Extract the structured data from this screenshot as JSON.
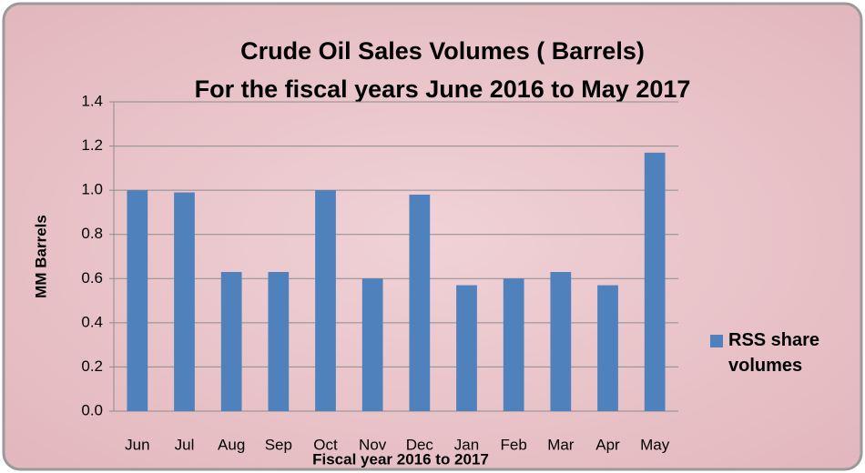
{
  "chart_data": {
    "type": "bar",
    "title": "Crude Oil Sales Volumes ( Barrels)",
    "subtitle": "For the fiscal years June 2016 to May 2017",
    "x_label": "Fiscal year 2016 to 2017",
    "y_label": "MM Barrels",
    "categories": [
      "Jun",
      "Jul",
      "Aug",
      "Sep",
      "Oct",
      "Nov",
      "Dec",
      "Jan",
      "Feb",
      "Mar",
      "Apr",
      "May"
    ],
    "series": [
      {
        "name": "RSS share volumes",
        "color": "#4f81bd",
        "values": [
          1.0,
          0.99,
          0.63,
          0.63,
          1.0,
          0.6,
          0.98,
          0.57,
          0.6,
          0.63,
          0.57,
          1.17
        ]
      }
    ],
    "ylim": [
      0,
      1.4
    ],
    "yticks": [
      {
        "value": 0,
        "label": "0.0"
      },
      0.2,
      0.4,
      0.6,
      0.8,
      {
        "value": 1,
        "label": "1.0"
      },
      1.2,
      1.4
    ],
    "grid": true,
    "legend": "right"
  }
}
